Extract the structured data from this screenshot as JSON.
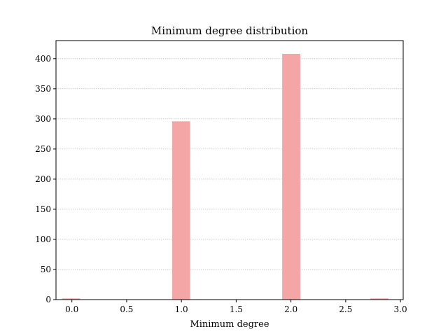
{
  "chart_data": {
    "type": "bar",
    "title": "Minimum degree distribution",
    "xlabel": "Minimum degree",
    "ylabel": "",
    "xlim": [
      -0.145,
      3.025
    ],
    "ylim": [
      0,
      430
    ],
    "xticks": [
      0.0,
      0.5,
      1.0,
      1.5,
      2.0,
      2.5,
      3.0
    ],
    "xtick_labels": [
      "0.0",
      "0.5",
      "1.0",
      "1.5",
      "2.0",
      "2.5",
      "3.0"
    ],
    "yticks": [
      0,
      50,
      100,
      150,
      200,
      250,
      300,
      350,
      400
    ],
    "ytick_labels": [
      "0",
      "50",
      "100",
      "150",
      "200",
      "250",
      "300",
      "350",
      "400"
    ],
    "grid": "horizontal dotted",
    "bar_color": "#f4a6a6",
    "bars": [
      {
        "x_start": -0.09,
        "x_end": 0.075,
        "value": 2
      },
      {
        "x_start": 0.915,
        "x_end": 1.08,
        "value": 296
      },
      {
        "x_start": 1.92,
        "x_end": 2.085,
        "value": 408
      },
      {
        "x_start": 2.725,
        "x_end": 2.89,
        "value": 2
      }
    ]
  }
}
